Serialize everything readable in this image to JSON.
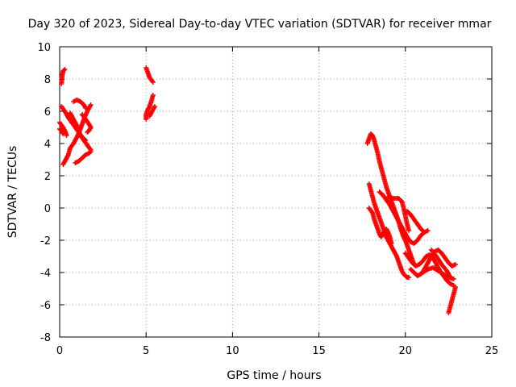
{
  "chart_data": {
    "type": "scatter",
    "title": "Day 320 of 2023, Sidereal Day-to-day VTEC variation (SDTVAR) for receiver mmar",
    "xlabel": "GPS time / hours",
    "ylabel": "SDTVAR / TECUs",
    "xlim": [
      0,
      25
    ],
    "ylim": [
      -8,
      10
    ],
    "xticks": [
      0,
      5,
      10,
      15,
      20,
      25
    ],
    "yticks": [
      -8,
      -6,
      -4,
      -2,
      0,
      2,
      4,
      6,
      8,
      10
    ],
    "grid": true,
    "marker": "+",
    "series": [
      {
        "name": "SDTVAR",
        "color": "#ff0000",
        "paths": [
          [
            [
              0.1,
              7.7
            ],
            [
              0.15,
              8.2
            ],
            [
              0.2,
              8.5
            ],
            [
              0.3,
              8.6
            ]
          ],
          [
            [
              0.1,
              6.3
            ],
            [
              0.3,
              6.0
            ],
            [
              0.5,
              5.6
            ],
            [
              0.7,
              5.3
            ],
            [
              0.9,
              5.0
            ],
            [
              1.1,
              4.7
            ],
            [
              1.3,
              4.4
            ],
            [
              1.5,
              4.2
            ]
          ],
          [
            [
              0.0,
              5.3
            ],
            [
              0.2,
              5.0
            ],
            [
              0.3,
              4.8
            ],
            [
              0.4,
              4.5
            ]
          ],
          [
            [
              0.0,
              4.9
            ],
            [
              0.1,
              4.8
            ],
            [
              0.2,
              4.6
            ]
          ],
          [
            [
              0.2,
              2.7
            ],
            [
              0.3,
              2.9
            ],
            [
              0.5,
              3.3
            ],
            [
              0.6,
              3.7
            ],
            [
              0.8,
              4.0
            ],
            [
              1.0,
              4.4
            ],
            [
              1.2,
              4.9
            ],
            [
              1.4,
              5.5
            ],
            [
              1.6,
              6.0
            ],
            [
              1.8,
              6.4
            ]
          ],
          [
            [
              0.8,
              6.6
            ],
            [
              1.0,
              6.7
            ],
            [
              1.2,
              6.6
            ],
            [
              1.4,
              6.4
            ],
            [
              1.5,
              6.2
            ]
          ],
          [
            [
              0.6,
              5.9
            ],
            [
              0.8,
              5.5
            ],
            [
              1.0,
              5.1
            ],
            [
              1.1,
              4.8
            ],
            [
              1.2,
              4.5
            ],
            [
              1.4,
              4.2
            ],
            [
              1.6,
              3.9
            ],
            [
              1.8,
              3.6
            ]
          ],
          [
            [
              0.9,
              2.8
            ],
            [
              1.1,
              2.9
            ],
            [
              1.3,
              3.1
            ],
            [
              1.5,
              3.3
            ],
            [
              1.7,
              3.4
            ],
            [
              1.8,
              3.5
            ]
          ],
          [
            [
              1.3,
              5.8
            ],
            [
              1.5,
              5.5
            ],
            [
              1.7,
              5.2
            ],
            [
              1.8,
              5.0
            ],
            [
              1.7,
              4.8
            ],
            [
              1.6,
              4.7
            ]
          ],
          [
            [
              5.0,
              8.7
            ],
            [
              5.1,
              8.4
            ],
            [
              5.2,
              8.1
            ],
            [
              5.4,
              7.8
            ]
          ],
          [
            [
              5.4,
              7.0
            ],
            [
              5.3,
              6.6
            ],
            [
              5.2,
              6.3
            ],
            [
              5.1,
              6.1
            ],
            [
              5.0,
              5.8
            ],
            [
              5.0,
              5.5
            ]
          ],
          [
            [
              5.2,
              5.7
            ],
            [
              5.3,
              5.9
            ],
            [
              5.4,
              6.1
            ],
            [
              5.5,
              6.3
            ]
          ],
          [
            [
              17.8,
              4.0
            ],
            [
              17.9,
              4.3
            ],
            [
              18.0,
              4.6
            ],
            [
              18.1,
              4.5
            ],
            [
              18.2,
              4.2
            ],
            [
              18.3,
              3.8
            ],
            [
              18.4,
              3.4
            ],
            [
              18.5,
              2.9
            ],
            [
              18.6,
              2.5
            ],
            [
              18.7,
              2.1
            ],
            [
              18.8,
              1.7
            ],
            [
              18.9,
              1.3
            ],
            [
              19.0,
              1.0
            ],
            [
              19.1,
              0.7
            ],
            [
              19.2,
              0.4
            ],
            [
              19.3,
              0.1
            ],
            [
              19.4,
              -0.2
            ],
            [
              19.5,
              -0.5
            ],
            [
              19.6,
              -0.8
            ],
            [
              19.7,
              -1.2
            ],
            [
              19.8,
              -1.5
            ],
            [
              19.9,
              -1.8
            ],
            [
              20.0,
              -2.0
            ],
            [
              20.1,
              -2.3
            ],
            [
              20.2,
              -2.6
            ],
            [
              20.3,
              -2.9
            ],
            [
              20.4,
              -3.2
            ],
            [
              20.5,
              -3.5
            ]
          ],
          [
            [
              17.9,
              1.5
            ],
            [
              18.0,
              1.1
            ],
            [
              18.1,
              0.7
            ],
            [
              18.2,
              0.3
            ],
            [
              18.3,
              0.0
            ],
            [
              18.4,
              -0.3
            ],
            [
              18.5,
              -0.6
            ],
            [
              18.6,
              -0.9
            ],
            [
              18.7,
              -1.2
            ],
            [
              18.8,
              -1.5
            ],
            [
              18.9,
              -1.8
            ],
            [
              19.0,
              -2.0
            ],
            [
              19.1,
              -2.2
            ],
            [
              19.2,
              -2.4
            ],
            [
              19.3,
              -2.6
            ],
            [
              19.4,
              -2.8
            ],
            [
              19.5,
              -3.0
            ],
            [
              19.6,
              -3.3
            ],
            [
              19.7,
              -3.6
            ],
            [
              19.8,
              -3.9
            ],
            [
              19.9,
              -4.1
            ],
            [
              20.0,
              -4.2
            ],
            [
              20.1,
              -4.3
            ],
            [
              20.2,
              -4.3
            ]
          ],
          [
            [
              17.9,
              0.0
            ],
            [
              18.1,
              -0.3
            ],
            [
              18.2,
              -0.7
            ],
            [
              18.3,
              -1.0
            ],
            [
              18.4,
              -1.3
            ],
            [
              18.5,
              -1.6
            ],
            [
              18.6,
              -1.8
            ],
            [
              18.7,
              -1.6
            ],
            [
              18.8,
              -1.4
            ],
            [
              18.9,
              -1.3
            ],
            [
              19.0,
              -1.5
            ],
            [
              19.1,
              -1.8
            ],
            [
              19.2,
              -2.2
            ]
          ],
          [
            [
              18.5,
              1.0
            ],
            [
              18.7,
              0.8
            ],
            [
              18.9,
              0.5
            ],
            [
              19.1,
              0.2
            ],
            [
              19.3,
              -0.2
            ],
            [
              19.5,
              -0.6
            ],
            [
              19.7,
              -1.0
            ],
            [
              19.9,
              -1.4
            ],
            [
              20.1,
              -1.8
            ],
            [
              20.3,
              -2.1
            ],
            [
              20.5,
              -2.2
            ],
            [
              20.7,
              -2.0
            ],
            [
              20.9,
              -1.7
            ],
            [
              21.1,
              -1.5
            ],
            [
              21.3,
              -1.4
            ]
          ],
          [
            [
              19.0,
              0.7
            ],
            [
              19.3,
              0.6
            ],
            [
              19.6,
              0.6
            ],
            [
              19.8,
              0.4
            ],
            [
              19.9,
              0.0
            ],
            [
              20.0,
              -0.5
            ],
            [
              20.1,
              -1.0
            ],
            [
              20.2,
              -1.4
            ]
          ],
          [
            [
              20.1,
              -0.2
            ],
            [
              20.3,
              -0.4
            ],
            [
              20.5,
              -0.7
            ],
            [
              20.7,
              -1.0
            ],
            [
              20.9,
              -1.3
            ],
            [
              21.1,
              -1.5
            ]
          ],
          [
            [
              20.3,
              -3.8
            ],
            [
              20.5,
              -4.0
            ],
            [
              20.7,
              -4.2
            ],
            [
              20.9,
              -4.1
            ],
            [
              21.1,
              -3.8
            ],
            [
              21.3,
              -3.4
            ],
            [
              21.5,
              -3.0
            ],
            [
              21.7,
              -2.7
            ],
            [
              21.9,
              -2.6
            ],
            [
              22.1,
              -2.8
            ],
            [
              22.3,
              -3.1
            ],
            [
              22.5,
              -3.4
            ],
            [
              22.7,
              -3.6
            ],
            [
              22.9,
              -3.5
            ]
          ],
          [
            [
              20.0,
              -2.8
            ],
            [
              20.2,
              -3.1
            ],
            [
              20.4,
              -3.4
            ],
            [
              20.6,
              -3.6
            ],
            [
              20.8,
              -3.5
            ],
            [
              21.0,
              -3.3
            ],
            [
              21.2,
              -3.0
            ],
            [
              21.4,
              -2.9
            ],
            [
              21.6,
              -3.1
            ],
            [
              21.8,
              -3.5
            ],
            [
              22.0,
              -3.9
            ],
            [
              22.2,
              -4.2
            ],
            [
              22.4,
              -4.5
            ],
            [
              22.6,
              -4.7
            ],
            [
              22.8,
              -4.8
            ]
          ],
          [
            [
              21.0,
              -4.0
            ],
            [
              21.3,
              -3.8
            ],
            [
              21.6,
              -3.7
            ],
            [
              21.9,
              -3.9
            ],
            [
              22.2,
              -4.1
            ],
            [
              22.5,
              -4.3
            ],
            [
              22.8,
              -4.4
            ]
          ],
          [
            [
              21.5,
              -2.6
            ],
            [
              21.8,
              -3.0
            ],
            [
              22.1,
              -3.5
            ],
            [
              22.4,
              -3.9
            ],
            [
              22.6,
              -4.3
            ]
          ],
          [
            [
              22.9,
              -4.9
            ],
            [
              22.8,
              -5.3
            ],
            [
              22.7,
              -5.7
            ],
            [
              22.6,
              -6.1
            ],
            [
              22.5,
              -6.5
            ]
          ]
        ]
      }
    ]
  }
}
